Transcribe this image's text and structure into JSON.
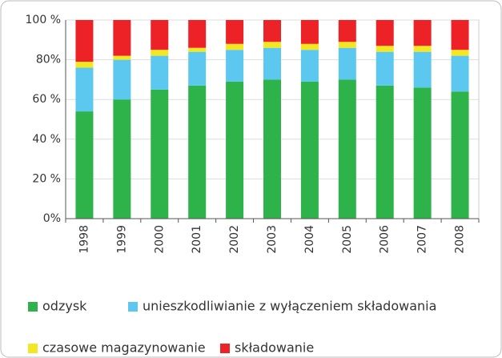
{
  "chart_data": {
    "type": "stacked_bar",
    "categories": [
      "1998",
      "1999",
      "2000",
      "2001",
      "2002",
      "2003",
      "2004",
      "2005",
      "2006",
      "2007",
      "2008"
    ],
    "series": [
      {
        "name": "odzysk",
        "color": "#2db34a",
        "values": [
          54,
          60,
          65,
          67,
          69,
          70,
          69,
          70,
          67,
          66,
          64
        ]
      },
      {
        "name": "unieszkodliwianie z wyłączeniem składowania",
        "color": "#5cc8f0",
        "values": [
          22,
          20,
          17,
          17,
          16,
          16,
          16,
          16,
          17,
          18,
          18
        ]
      },
      {
        "name": "czasowe magazynowanie",
        "color": "#f4e620",
        "values": [
          3,
          2,
          3,
          2,
          3,
          3,
          3,
          3,
          3,
          3,
          3
        ]
      },
      {
        "name": "składowanie",
        "color": "#ec2227",
        "values": [
          21,
          18,
          15,
          14,
          12,
          11,
          12,
          11,
          13,
          13,
          15
        ]
      }
    ],
    "ylim": [
      0,
      100
    ],
    "yticks": [
      {
        "value": 0,
        "label": "0%"
      },
      {
        "value": 20,
        "label": "20 %"
      },
      {
        "value": 40,
        "label": "40 %"
      },
      {
        "value": 60,
        "label": "60 %"
      },
      {
        "value": 80,
        "label": "80%"
      },
      {
        "value": 100,
        "label": "100 %"
      }
    ],
    "grid": true
  }
}
